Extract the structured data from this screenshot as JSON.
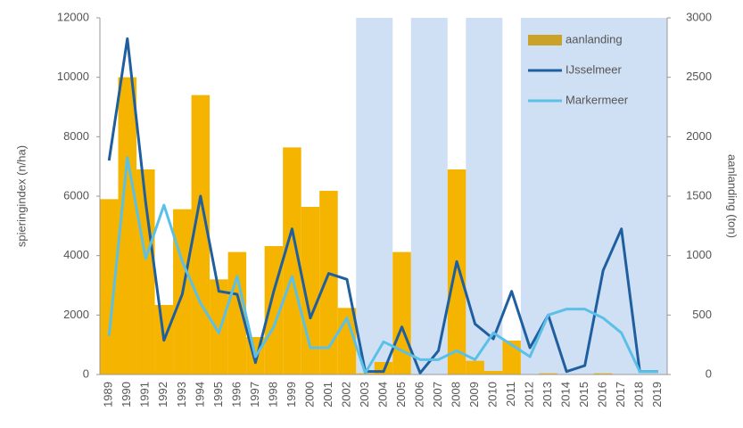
{
  "chart_data": {
    "type": "bar_line",
    "y_label": "spieringindex (n/ha)",
    "y2_label": "aanlanding (ton)",
    "categories": [
      "1989",
      "1990",
      "1991",
      "1992",
      "1993",
      "1994",
      "1995",
      "1996",
      "1997",
      "1998",
      "1999",
      "2000",
      "2001",
      "2002",
      "2003",
      "2004",
      "2005",
      "2006",
      "2007",
      "2008",
      "2009",
      "2010",
      "2011",
      "2012",
      "2013",
      "2014",
      "2015",
      "2016",
      "2017",
      "2018",
      "2019"
    ],
    "shaded_ranges": [
      [
        "2003",
        "2004"
      ],
      [
        "2006",
        "2007"
      ],
      [
        "2009",
        "2010"
      ],
      [
        "2012",
        "2019"
      ]
    ],
    "shade_color": "#cfe0f4",
    "series": [
      {
        "name": "aanlanding",
        "type": "bar",
        "axis": "y2",
        "color": "#f4b400",
        "legend_color": "#c9a227",
        "values": [
          1475,
          2500,
          1725,
          585,
          1390,
          2350,
          800,
          1030,
          315,
          1080,
          1910,
          1410,
          1545,
          560,
          10,
          105,
          1030,
          0,
          0,
          1725,
          115,
          30,
          285,
          0,
          10,
          0,
          0,
          10,
          0,
          0,
          0
        ]
      },
      {
        "name": "IJsselmeer",
        "type": "line",
        "color": "#1f5fa0",
        "values": [
          7200,
          11300,
          5800,
          1150,
          2700,
          6000,
          2800,
          2700,
          400,
          2800,
          4900,
          1900,
          3400,
          3200,
          100,
          100,
          1600,
          50,
          800,
          3800,
          1700,
          1200,
          2800,
          900,
          2000,
          100,
          300,
          3500,
          4900,
          100,
          100
        ]
      },
      {
        "name": "Markermeer",
        "type": "line",
        "color": "#5bc0e8",
        "values": [
          1300,
          7300,
          3900,
          5700,
          3800,
          2400,
          1400,
          3300,
          600,
          1600,
          3300,
          900,
          900,
          1900,
          50,
          1100,
          800,
          500,
          500,
          800,
          500,
          1400,
          1000,
          600,
          2000,
          2200,
          2200,
          1900,
          1400,
          100,
          100
        ]
      }
    ],
    "ylim": [
      0,
      12000
    ],
    "yticks": [
      0,
      2000,
      4000,
      6000,
      8000,
      10000,
      12000
    ],
    "y2lim": [
      0,
      3000
    ],
    "y2ticks": [
      0,
      500,
      1000,
      1500,
      2000,
      2500,
      3000
    ],
    "legend": "top-right"
  }
}
